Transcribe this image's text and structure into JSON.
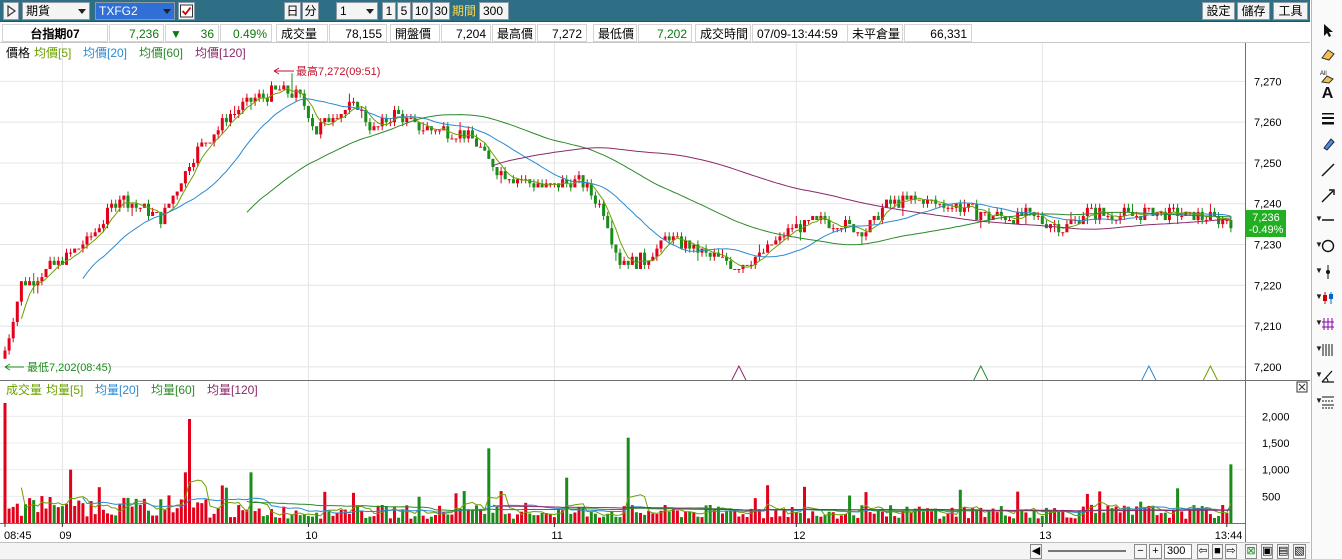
{
  "toolbar": {
    "market_select": "期貨",
    "symbol_input": "TXFG2",
    "period_day": "日",
    "period_minute": "分",
    "minute_select": "1",
    "minute_options": [
      "1",
      "5",
      "10",
      "30"
    ],
    "period_label": "期間",
    "period_value": "300",
    "settings_button": "設定",
    "save_button": "儲存",
    "tools_button": "工具"
  },
  "quote": {
    "name": "台指期07",
    "last": "7,236",
    "change_arrow": "▼",
    "change": "36",
    "change_pct": "0.49%",
    "volume_label": "成交量",
    "volume": "78,155",
    "open_label": "開盤價",
    "open": "7,204",
    "high_label": "最高價",
    "high": "7,272",
    "low_label": "最低價",
    "low": "7,202",
    "time_label": "成交時間",
    "time": "07/09-13:44:59",
    "oi_label": "未平倉量",
    "oi": "66,331"
  },
  "price_panel": {
    "legend": [
      {
        "text": "價格",
        "color": "#000000"
      },
      {
        "text": "均價[5]",
        "color": "#6aa000"
      },
      {
        "text": "均價[20]",
        "color": "#2b8ad0"
      },
      {
        "text": "均價[60]",
        "color": "#2a8a2a"
      },
      {
        "text": "均價[120]",
        "color": "#8a2a6a"
      }
    ],
    "high_annotation": "最高7,272(09:51)",
    "low_annotation": "最低7,202(08:45)",
    "last_price_tag": "7,236",
    "last_pct_tag": "-0.49%"
  },
  "volume_panel": {
    "legend": [
      {
        "text": "成交量",
        "color": "#6aa000"
      },
      {
        "text": "均量[5]",
        "color": "#6aa000"
      },
      {
        "text": "均量[20]",
        "color": "#2b8ad0"
      },
      {
        "text": "均量[60]",
        "color": "#2a8a2a"
      },
      {
        "text": "均量[120]",
        "color": "#8a2a6a"
      }
    ]
  },
  "time_axis": [
    "08:45",
    "09",
    "10",
    "11",
    "12",
    "13",
    "13:44"
  ],
  "bottom": {
    "zoom_value": "300"
  },
  "colors": {
    "up": "#e3001b",
    "down": "#1a8c1a",
    "ma5": "#6aa000",
    "ma20": "#2b8ad0",
    "ma60": "#2a8a2a",
    "ma120": "#8a2a6a",
    "toolbar": "#2e6f86",
    "tag": "#22b022"
  },
  "chart_data": [
    {
      "type": "candlestick",
      "title": "價格",
      "ylim": [
        7198,
        7275
      ],
      "y_ticks": [
        7200,
        7210,
        7220,
        7230,
        7240,
        7250,
        7260,
        7270
      ],
      "x_ticks": [
        "08:45",
        "09",
        "10",
        "11",
        "12",
        "13",
        "13:44"
      ],
      "bars": 300,
      "high": 7272,
      "low": 7202,
      "series": [
        {
          "name": "價格",
          "close_path": [
            [
              0,
              7204
            ],
            [
              4,
              7220
            ],
            [
              14,
              7226
            ],
            [
              18,
              7229
            ],
            [
              22,
              7233
            ],
            [
              28,
              7242
            ],
            [
              38,
              7236
            ],
            [
              46,
              7252
            ],
            [
              55,
              7262
            ],
            [
              62,
              7266
            ],
            [
              68,
              7268
            ],
            [
              72,
              7266
            ],
            [
              76,
              7258
            ],
            [
              80,
              7262
            ],
            [
              86,
              7264
            ],
            [
              90,
              7258
            ],
            [
              95,
              7262
            ],
            [
              100,
              7259
            ],
            [
              108,
              7258
            ],
            [
              114,
              7256
            ],
            [
              120,
              7248
            ],
            [
              126,
              7246
            ],
            [
              132,
              7244
            ],
            [
              140,
              7246
            ],
            [
              146,
              7238
            ],
            [
              150,
              7226
            ],
            [
              156,
              7226
            ],
            [
              162,
              7232
            ],
            [
              170,
              7228
            ],
            [
              178,
              7225
            ],
            [
              184,
              7227
            ],
            [
              192,
              7234
            ],
            [
              200,
              7236
            ],
            [
              210,
              7233
            ],
            [
              215,
              7240
            ],
            [
              222,
              7241
            ],
            [
              230,
              7240
            ],
            [
              240,
              7237
            ],
            [
              250,
              7237
            ],
            [
              258,
              7234
            ],
            [
              264,
              7238
            ],
            [
              272,
              7237
            ],
            [
              280,
              7238
            ],
            [
              290,
              7237
            ],
            [
              299,
              7236
            ]
          ]
        },
        {
          "name": "均價[5]",
          "color": "#6aa000"
        },
        {
          "name": "均價[20]",
          "color": "#2b8ad0"
        },
        {
          "name": "均價[60]",
          "color": "#2a8a2a"
        },
        {
          "name": "均價[120]",
          "color": "#8a2a6a"
        }
      ]
    },
    {
      "type": "bar",
      "title": "成交量",
      "ylim": [
        0,
        2400
      ],
      "y_ticks": [
        500,
        1000,
        1500,
        2000
      ],
      "x_ticks": [
        "08:45",
        "09",
        "10",
        "11",
        "12",
        "13",
        "13:44"
      ],
      "spikes": [
        [
          0,
          2250
        ],
        [
          16,
          1000
        ],
        [
          45,
          1950
        ],
        [
          44,
          950
        ],
        [
          60,
          950
        ],
        [
          152,
          1600
        ],
        [
          118,
          1400
        ],
        [
          137,
          850
        ],
        [
          286,
          650
        ],
        [
          277,
          400
        ],
        [
          299,
          1100
        ]
      ],
      "series": [
        {
          "name": "均量[5]",
          "color": "#6aa000"
        },
        {
          "name": "均量[20]",
          "color": "#2b8ad0"
        },
        {
          "name": "均量[60]",
          "color": "#2a8a2a"
        },
        {
          "name": "均量[120]",
          "color": "#8a2a6a"
        }
      ]
    }
  ]
}
